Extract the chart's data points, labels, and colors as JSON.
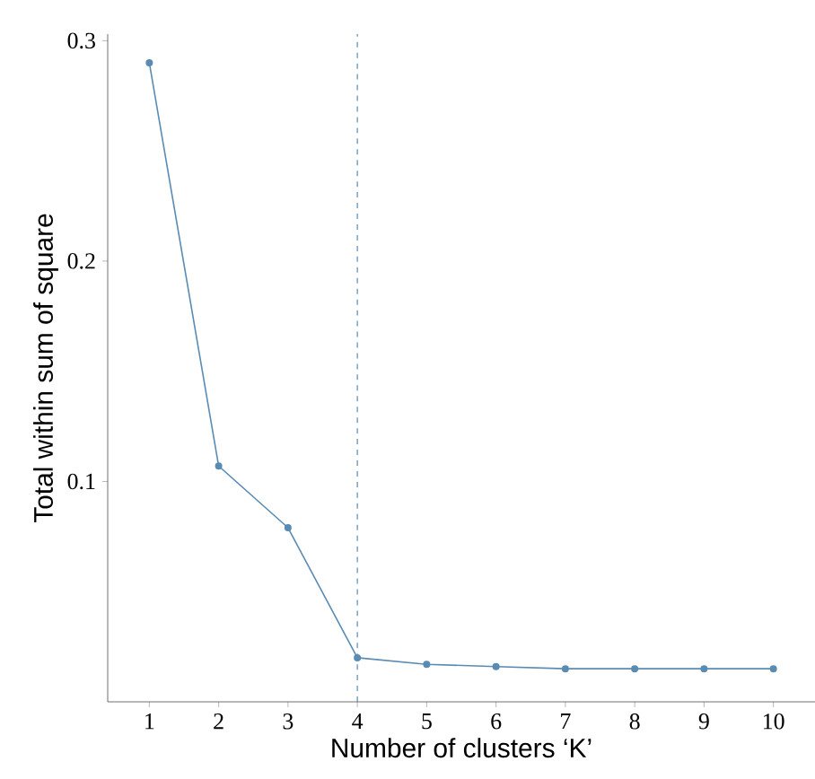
{
  "chart_data": {
    "type": "line",
    "xlabel": "Number of clusters ‘K’",
    "ylabel": "Total within sum of square",
    "x": [
      1,
      2,
      3,
      4,
      5,
      6,
      7,
      8,
      9,
      10
    ],
    "values": [
      0.29,
      0.107,
      0.079,
      0.02,
      0.017,
      0.016,
      0.015,
      0.015,
      0.015,
      0.015
    ],
    "color": "#5a8bb3",
    "marker": "circle",
    "line_style": "solid",
    "xlim": [
      0.4,
      10.6
    ],
    "ylim": [
      0,
      0.303
    ],
    "xticks": [
      1,
      2,
      3,
      4,
      5,
      6,
      7,
      8,
      9,
      10
    ],
    "yticks": [
      0.1,
      0.2,
      0.3
    ],
    "ref_lines": [
      {
        "axis": "x",
        "value": 4,
        "color": "#5a8bb3",
        "line_style": "dashed"
      }
    ],
    "grid": false
  }
}
